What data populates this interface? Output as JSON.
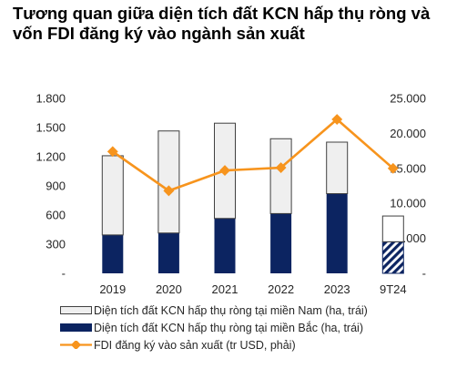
{
  "title": "Tương quan giữa diện tích đất KCN hấp thụ ròng và vốn FDI đăng ký vào ngành sản xuất",
  "chart_data": {
    "type": "bar+line",
    "categories": [
      "2019",
      "2020",
      "2021",
      "2022",
      "2023",
      "9T24"
    ],
    "series": [
      {
        "name": "Diện tích đất KCN hấp thụ ròng tại miền Nam (ha, trái)",
        "kind": "stacked-bar",
        "axis": "left",
        "values": [
          815,
          1050,
          980,
          770,
          530,
          265
        ],
        "color": "#efefef"
      },
      {
        "name": "Diện tích đất KCN hấp thụ ròng tại miền Bắc (ha, trái)",
        "kind": "stacked-bar",
        "axis": "left",
        "values": [
          395,
          415,
          565,
          615,
          820,
          325
        ],
        "color": "#0c2461"
      },
      {
        "name": "FDI đăng ký vào sản xuất (tr USD, phải)",
        "kind": "line",
        "axis": "right",
        "values": [
          17400,
          11800,
          14700,
          15100,
          22000,
          15000
        ],
        "color": "#f7941d"
      }
    ],
    "hatched_category": "9T24",
    "left_axis": {
      "ylim": [
        0,
        1800
      ],
      "ticks": [
        0,
        300,
        600,
        900,
        1200,
        1500,
        1800
      ],
      "tick_labels": [
        "-",
        "300",
        "600",
        "900",
        "1.200",
        "1.500",
        "1.800"
      ]
    },
    "right_axis": {
      "ylim": [
        0,
        25000
      ],
      "ticks": [
        0,
        5000,
        10000,
        15000,
        20000,
        25000
      ],
      "tick_labels": [
        "-",
        "5.000",
        "10.000",
        "15.000",
        "20.000",
        "25.000"
      ]
    },
    "grid": false,
    "legend_position": "bottom-left"
  }
}
